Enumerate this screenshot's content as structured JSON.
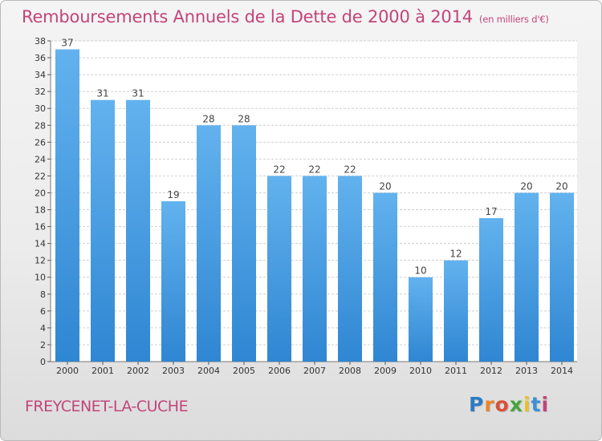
{
  "header": {
    "title": "Remboursements Annuels de la Dette de 2000 à 2014",
    "subtitle": "(en milliers d'€)"
  },
  "footer": {
    "commune": "FREYCENET-LA-CUCHE",
    "logo_letters": [
      "P",
      "r",
      "o",
      "x",
      "i",
      "t",
      "i"
    ]
  },
  "colors": {
    "bar": "#2f86d2",
    "bar_light": "#62b2ee",
    "title": "#c2457a",
    "grid": "#d0d0d0"
  },
  "chart_data": {
    "type": "bar",
    "title": "Remboursements Annuels de la Dette de 2000 à 2014",
    "subtitle": "(en milliers d'€)",
    "xlabel": "",
    "ylabel": "",
    "categories": [
      "2000",
      "2001",
      "2002",
      "2003",
      "2004",
      "2005",
      "2006",
      "2007",
      "2008",
      "2009",
      "2010",
      "2011",
      "2012",
      "2013",
      "2014"
    ],
    "values": [
      37,
      31,
      31,
      19,
      28,
      28,
      22,
      22,
      22,
      20,
      10,
      12,
      17,
      20,
      20
    ],
    "ylim": [
      0,
      38
    ],
    "ytick_step": 2,
    "grid": true,
    "data_labels": true,
    "legend": "none"
  }
}
